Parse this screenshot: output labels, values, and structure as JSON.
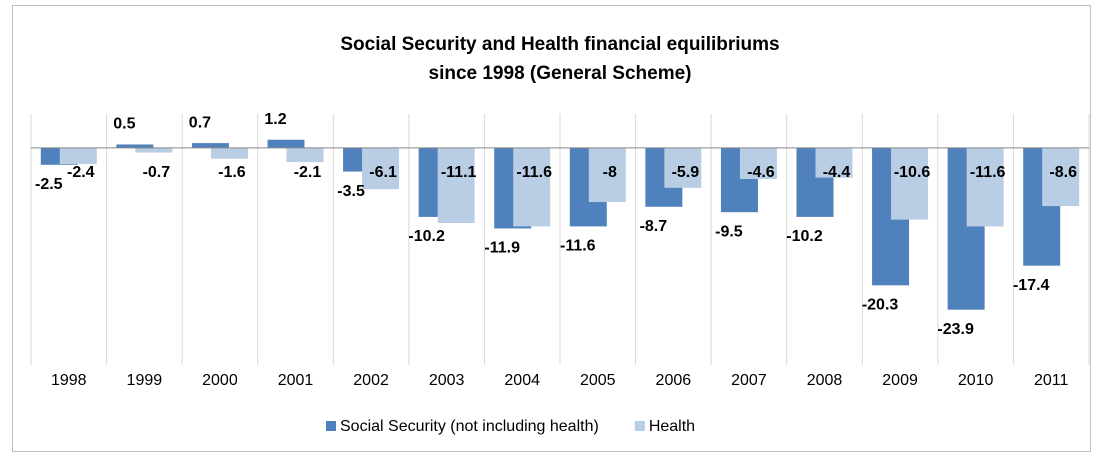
{
  "chart_data": {
    "type": "bar",
    "title": [
      "Social Security and Health financial equilibriums",
      "since 1998 (General Scheme)"
    ],
    "categories": [
      "1998",
      "1999",
      "2000",
      "2001",
      "2002",
      "2003",
      "2004",
      "2005",
      "2006",
      "2007",
      "2008",
      "2009",
      "2010",
      "2011"
    ],
    "series": [
      {
        "name": "Social Security (not including health)",
        "color": "#4f81bd",
        "values": [
          -2.5,
          0.5,
          0.7,
          1.2,
          -3.5,
          -10.2,
          -11.9,
          -11.6,
          -8.7,
          -9.5,
          -10.2,
          -20.3,
          -23.9,
          -17.4
        ]
      },
      {
        "name": "Health",
        "color": "#b9cde5",
        "values": [
          -2.4,
          -0.7,
          -1.6,
          -2.1,
          -6.1,
          -11.1,
          -11.6,
          -8,
          -5.9,
          -4.6,
          -4.4,
          -10.6,
          -11.6,
          -8.6
        ]
      }
    ],
    "ylim": [
      -30,
      5
    ],
    "legend": "bottom"
  }
}
